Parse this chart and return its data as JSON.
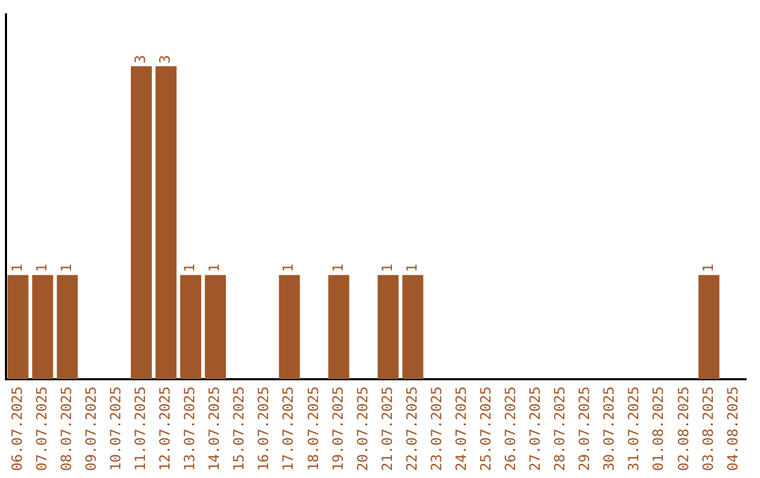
{
  "chart_data": {
    "type": "bar",
    "categories": [
      "06.07.2025",
      "07.07.2025",
      "08.07.2025",
      "09.07.2025",
      "10.07.2025",
      "11.07.2025",
      "12.07.2025",
      "13.07.2025",
      "14.07.2025",
      "15.07.2025",
      "16.07.2025",
      "17.07.2025",
      "18.07.2025",
      "19.07.2025",
      "20.07.2025",
      "21.07.2025",
      "22.07.2025",
      "23.07.2025",
      "24.07.2025",
      "25.07.2025",
      "26.07.2025",
      "27.07.2025",
      "28.07.2025",
      "29.07.2025",
      "30.07.2025",
      "31.07.2025",
      "01.08.2025",
      "02.08.2025",
      "03.08.2025",
      "04.08.2025"
    ],
    "values": [
      1,
      1,
      1,
      0,
      0,
      3,
      3,
      1,
      1,
      0,
      0,
      1,
      0,
      1,
      0,
      1,
      1,
      0,
      0,
      0,
      0,
      0,
      0,
      0,
      0,
      0,
      0,
      0,
      1,
      0
    ],
    "value_labels": [
      "1",
      "1",
      "1",
      null,
      null,
      "3",
      "3",
      "1",
      "1",
      null,
      null,
      "1",
      null,
      "1",
      null,
      "1",
      "1",
      null,
      null,
      null,
      null,
      null,
      null,
      null,
      null,
      null,
      null,
      null,
      "1",
      null
    ],
    "color": "#a0572a",
    "grid": false,
    "legend": false,
    "tick_labels": "x"
  }
}
